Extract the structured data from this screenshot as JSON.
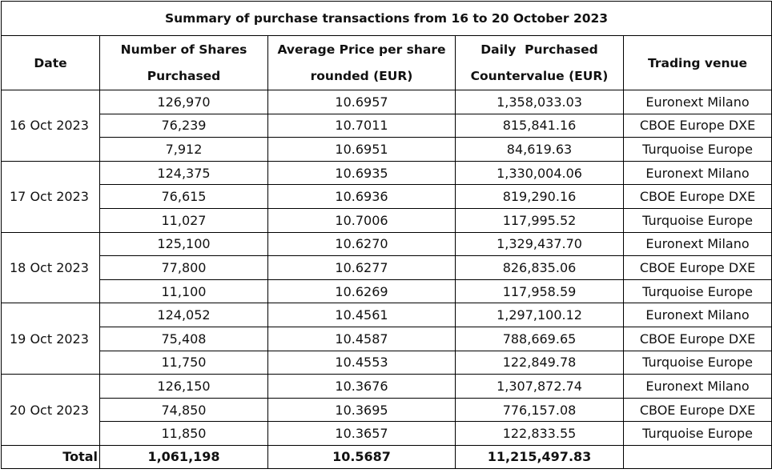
{
  "title": "Summary of purchase transactions from 16 to 20 October 2023",
  "headers": {
    "date": "Date",
    "shares_line1": "Number of Shares",
    "shares_line2": "Purchased",
    "price_line1": "Average Price per share",
    "price_line2": "rounded (EUR)",
    "countervalue_line1": "Daily  Purchased",
    "countervalue_line2": "Countervalue (EUR)",
    "venue": "Trading venue"
  },
  "days": [
    {
      "date": "16 Oct 2023",
      "rows": [
        {
          "shares": "126,970",
          "price": "10.6957",
          "countervalue": "1,358,033.03",
          "venue": "Euronext Milano"
        },
        {
          "shares": "76,239",
          "price": "10.7011",
          "countervalue": "815,841.16",
          "venue": "CBOE Europe DXE"
        },
        {
          "shares": "7,912",
          "price": "10.6951",
          "countervalue": "84,619.63",
          "venue": "Turquoise Europe"
        }
      ]
    },
    {
      "date": "17 Oct 2023",
      "rows": [
        {
          "shares": "124,375",
          "price": "10.6935",
          "countervalue": "1,330,004.06",
          "venue": "Euronext Milano"
        },
        {
          "shares": "76,615",
          "price": "10.6936",
          "countervalue": "819,290.16",
          "venue": "CBOE Europe DXE"
        },
        {
          "shares": "11,027",
          "price": "10.7006",
          "countervalue": "117,995.52",
          "venue": "Turquoise Europe"
        }
      ]
    },
    {
      "date": "18 Oct 2023",
      "rows": [
        {
          "shares": "125,100",
          "price": "10.6270",
          "countervalue": "1,329,437.70",
          "venue": "Euronext Milano"
        },
        {
          "shares": "77,800",
          "price": "10.6277",
          "countervalue": "826,835.06",
          "venue": "CBOE Europe DXE"
        },
        {
          "shares": "11,100",
          "price": "10.6269",
          "countervalue": "117,958.59",
          "venue": "Turquoise Europe"
        }
      ]
    },
    {
      "date": "19 Oct 2023",
      "rows": [
        {
          "shares": "124,052",
          "price": "10.4561",
          "countervalue": "1,297,100.12",
          "venue": "Euronext Milano"
        },
        {
          "shares": "75,408",
          "price": "10.4587",
          "countervalue": "788,669.65",
          "venue": "CBOE Europe DXE"
        },
        {
          "shares": "11,750",
          "price": "10.4553",
          "countervalue": "122,849.78",
          "venue": "Turquoise Europe"
        }
      ]
    },
    {
      "date": "20 Oct 2023",
      "rows": [
        {
          "shares": "126,150",
          "price": "10.3676",
          "countervalue": "1,307,872.74",
          "venue": "Euronext Milano"
        },
        {
          "shares": "74,850",
          "price": "10.3695",
          "countervalue": "776,157.08",
          "venue": "CBOE Europe DXE"
        },
        {
          "shares": "11,850",
          "price": "10.3657",
          "countervalue": "122,833.55",
          "venue": "Turquoise Europe"
        }
      ]
    }
  ],
  "total": {
    "label": "Total",
    "shares": "1,061,198",
    "price": "10.5687",
    "countervalue": "11,215,497.83",
    "venue": ""
  }
}
